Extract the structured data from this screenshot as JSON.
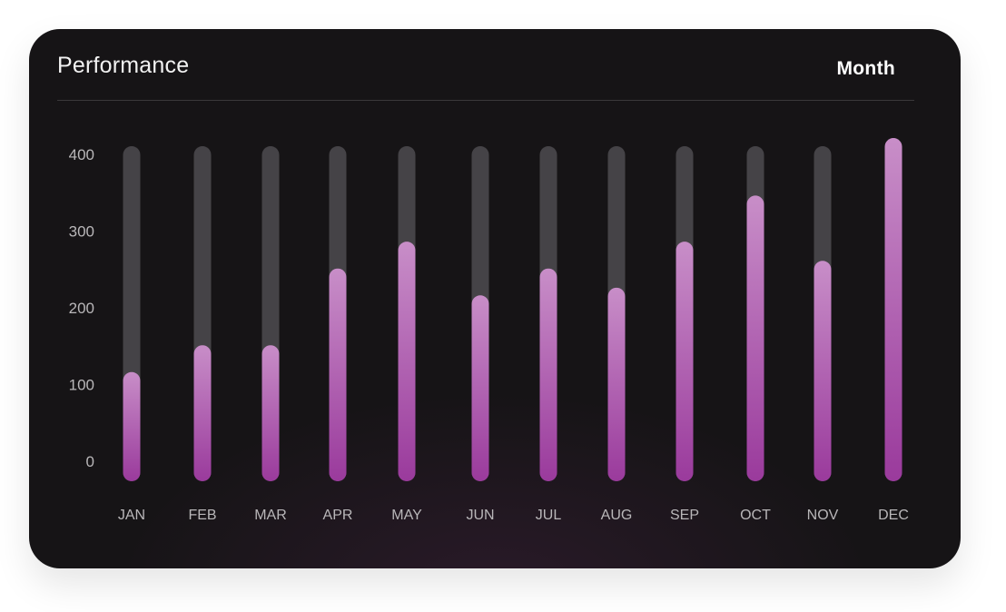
{
  "card": {
    "title": "Performance",
    "period_selector": "Month"
  },
  "colors": {
    "background": "#161416",
    "track": "#454347",
    "bar_top": "#c88ec8",
    "bar_bottom": "#9a3a9c",
    "axis_text": "#b9b7b9",
    "title_text": "#f2f2f2"
  },
  "chart_data": {
    "type": "bar",
    "title": "",
    "xlabel": "",
    "ylabel": "",
    "categories": [
      "JAN",
      "FEB",
      "MAR",
      "APR",
      "MAY",
      "JUN",
      "JUL",
      "AUG",
      "SEP",
      "OCT",
      "NOV",
      "DEC"
    ],
    "values": [
      105,
      140,
      140,
      240,
      275,
      205,
      240,
      215,
      275,
      335,
      250,
      410
    ],
    "ylim": [
      0,
      400
    ],
    "yticks": [
      0,
      100,
      200,
      300,
      400
    ],
    "grid": false,
    "legend": "none"
  }
}
